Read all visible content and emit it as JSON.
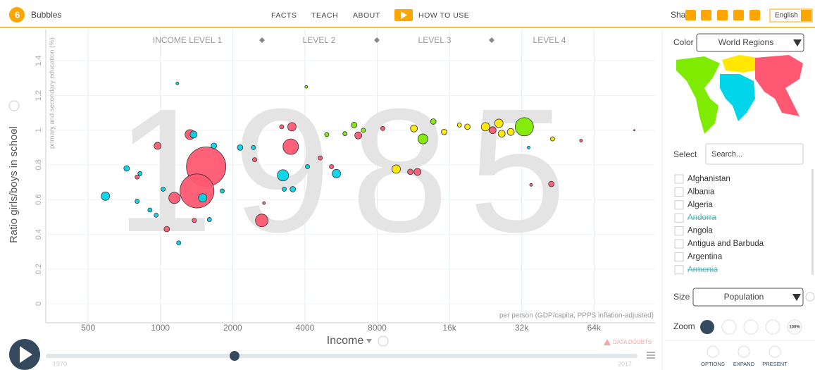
{
  "header": {
    "app": "Bubbles",
    "nav": [
      "FACTS",
      "TEACH",
      "ABOUT"
    ],
    "how_to": "HOW TO USE",
    "share": "Share",
    "language": "English"
  },
  "chart_data": {
    "type": "scatter",
    "watermark": "1985",
    "annotations": [
      "INCOME LEVEL 1",
      "LEVEL 2",
      "LEVEL 3",
      "LEVEL 4"
    ],
    "x_label": "Income",
    "x_note": "per person (GDP/capita, PPPS inflation-adjusted)",
    "y_label": "Ratio girls/boys in school",
    "y_note": "primary and secondary education (%)",
    "x_scale": "log",
    "grid": true,
    "xlim": [
      333,
      115000
    ],
    "xticks": [
      500,
      1000,
      2000,
      4000,
      8000,
      {
        "value": 16000,
        "label": "16k"
      },
      {
        "value": 32000,
        "label": "32k"
      },
      {
        "value": 64000,
        "label": "64k"
      }
    ],
    "ylim": [
      -0.11,
      1.58
    ],
    "yticks": [
      0,
      0.2,
      0.4,
      0.6,
      0.8,
      1,
      1.2,
      1.4
    ],
    "x": [
      1551,
      1420,
      590,
      723,
      800,
      822,
      800,
      904,
      960,
      973,
      1027,
      1063,
      1144,
      1176,
      1192,
      1328,
      1374,
      1500,
      1670,
      1810,
      1383,
      1600,
      2147,
      2643,
      2440,
      2470,
      2700,
      3240,
      3280,
      3490,
      3530,
      3200,
      3560,
      4100,
      4050,
      4630,
      5160,
      5410,
      4930,
      5870,
      6410,
      6670,
      7000,
      8440,
      9600,
      10990,
      11770,
      11380,
      12400,
      13710,
      15200,
      17600,
      19000,
      22600,
      24200,
      25700,
      26400,
      28800,
      32800,
      34200,
      35000,
      42500,
      56500,
      94300,
      43000
    ],
    "values": [
      0.79,
      0.65,
      0.62,
      0.78,
      0.73,
      0.75,
      0.59,
      0.54,
      0.51,
      0.91,
      0.66,
      0.43,
      0.61,
      1.27,
      0.35,
      0.975,
      0.975,
      0.61,
      0.91,
      0.65,
      0.48,
      0.485,
      0.9,
      0.48,
      0.9,
      0.83,
      0.58,
      0.74,
      0.66,
      0.905,
      1.02,
      1.02,
      0.66,
      0.79,
      1.25,
      0.84,
      0.79,
      0.75,
      0.975,
      0.98,
      1.03,
      0.97,
      1.0,
      1.01,
      0.776,
      0.76,
      0.76,
      1.01,
      0.95,
      1.05,
      0.99,
      1.03,
      1.02,
      1.02,
      1.0,
      1.04,
      0.98,
      0.99,
      1.02,
      0.9,
      0.685,
      0.69,
      0.94,
      1.0,
      0.95
    ],
    "sizes": [
      1050,
      780,
      48,
      21,
      12,
      12,
      12,
      12,
      12,
      33,
      12,
      21,
      86,
      5.4,
      12,
      66,
      33,
      48,
      21,
      12,
      12,
      12,
      21,
      108,
      12,
      12,
      5.4,
      86,
      12,
      162,
      48,
      12,
      21,
      12,
      5.4,
      12,
      12,
      48,
      12,
      12,
      21,
      33,
      12,
      12,
      48,
      21,
      33,
      33,
      66,
      21,
      21,
      12,
      21,
      48,
      33,
      48,
      33,
      33,
      226,
      5.4,
      5.4,
      21,
      5.4,
      1.3,
      12
    ],
    "colors": [
      "#ff5872",
      "#ff5872",
      "#00d5e9",
      "#00d5e9",
      "#ff5872",
      "#00d5e9",
      "#00d5e9",
      "#00d5e9",
      "#00d5e9",
      "#ff5872",
      "#00d5e9",
      "#ff5872",
      "#ff5872",
      "#00d5e9",
      "#00d5e9",
      "#ff5872",
      "#00d5e9",
      "#00d5e9",
      "#00d5e9",
      "#00d5e9",
      "#ff5872",
      "#00d5e9",
      "#00d5e9",
      "#ff5872",
      "#00d5e9",
      "#ff5872",
      "#ff5872",
      "#00d5e9",
      "#00d5e9",
      "#ff5872",
      "#ff5872",
      "#ff5872",
      "#00d5e9",
      "#00d5e9",
      "#7feb00",
      "#ff5872",
      "#ff5872",
      "#00d5e9",
      "#7feb00",
      "#7feb00",
      "#7feb00",
      "#ff5872",
      "#7feb00",
      "#ff5872",
      "#ffe700",
      "#ff5872",
      "#ff5872",
      "#ffe700",
      "#7feb00",
      "#7feb00",
      "#ffe700",
      "#ffe700",
      "#ffe700",
      "#ffe700",
      "#ff5872",
      "#ffe700",
      "#ffe700",
      "#ffe700",
      "#7feb00",
      "#00d5e9",
      "#ff5872",
      "#ff5872",
      "#ff5872",
      "#ff5872",
      "#ffe700"
    ]
  },
  "timeline": {
    "start": "1970",
    "end": "2017",
    "data_doubts": "DATA DOUBTS"
  },
  "sidebar": {
    "color_label": "Color",
    "color_value": "World Regions",
    "select_label": "Select",
    "search_placeholder": "Search...",
    "countries": [
      "Afghanistan",
      "Albania",
      "Algeria",
      "Andorra",
      "Angola",
      "Antigua and Barbuda",
      "Argentina",
      "Armenia"
    ],
    "size_label": "Size",
    "size_value": "Population",
    "zoom_label": "Zoom",
    "zoom_reset": "100%",
    "buttons": [
      "OPTIONS",
      "EXPAND",
      "PRESENT"
    ]
  }
}
